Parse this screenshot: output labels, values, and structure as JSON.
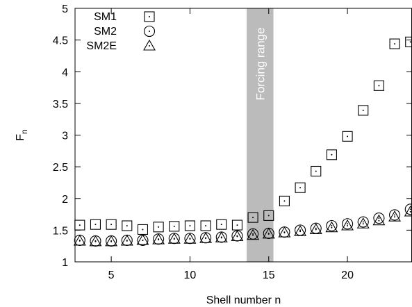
{
  "chart_data": {
    "type": "scatter",
    "xlabel": "Shell number n",
    "ylabel": "F",
    "ylabel_subscript": "n",
    "xlim": [
      2.7,
      24.1
    ],
    "ylim": [
      1,
      5
    ],
    "xticks": [
      5,
      10,
      15,
      20
    ],
    "yticks": [
      1,
      1.5,
      2,
      2.5,
      3,
      3.5,
      4,
      4.5,
      5
    ],
    "grid": false,
    "legend_position": "top-left",
    "band": {
      "label": "Forcing range",
      "x_from": 13.6,
      "x_to": 15.3,
      "color": "#bbbbbb"
    },
    "series": [
      {
        "name": "SM1",
        "marker": "square-dot",
        "x": [
          3,
          4,
          5,
          6,
          7,
          8,
          9,
          10,
          11,
          12,
          13,
          14,
          15,
          16,
          17,
          18,
          19,
          20,
          21,
          22,
          23,
          24
        ],
        "y": [
          1.58,
          1.59,
          1.59,
          1.57,
          1.51,
          1.55,
          1.56,
          1.57,
          1.57,
          1.59,
          1.58,
          1.7,
          1.73,
          1.96,
          2.17,
          2.43,
          2.69,
          2.98,
          3.39,
          3.78,
          4.44,
          4.47
        ]
      },
      {
        "name": "SM2",
        "marker": "circle-dot",
        "x": [
          3,
          4,
          5,
          6,
          7,
          8,
          9,
          10,
          11,
          12,
          13,
          14,
          15,
          16,
          17,
          18,
          19,
          20,
          21,
          22,
          23,
          24
        ],
        "y": [
          1.34,
          1.33,
          1.33,
          1.34,
          1.34,
          1.36,
          1.37,
          1.37,
          1.38,
          1.39,
          1.41,
          1.44,
          1.45,
          1.47,
          1.5,
          1.53,
          1.57,
          1.6,
          1.63,
          1.69,
          1.74,
          1.83
        ]
      },
      {
        "name": "SM2E",
        "marker": "triangle-dot",
        "x": [
          3,
          4,
          5,
          6,
          7,
          8,
          9,
          10,
          11,
          12,
          13,
          14,
          15,
          16,
          17,
          18,
          19,
          20,
          21,
          22,
          23,
          24
        ],
        "y": [
          1.33,
          1.32,
          1.32,
          1.33,
          1.34,
          1.35,
          1.36,
          1.36,
          1.37,
          1.38,
          1.4,
          1.42,
          1.44,
          1.46,
          1.48,
          1.51,
          1.54,
          1.57,
          1.6,
          1.65,
          1.71,
          1.79
        ]
      }
    ]
  }
}
